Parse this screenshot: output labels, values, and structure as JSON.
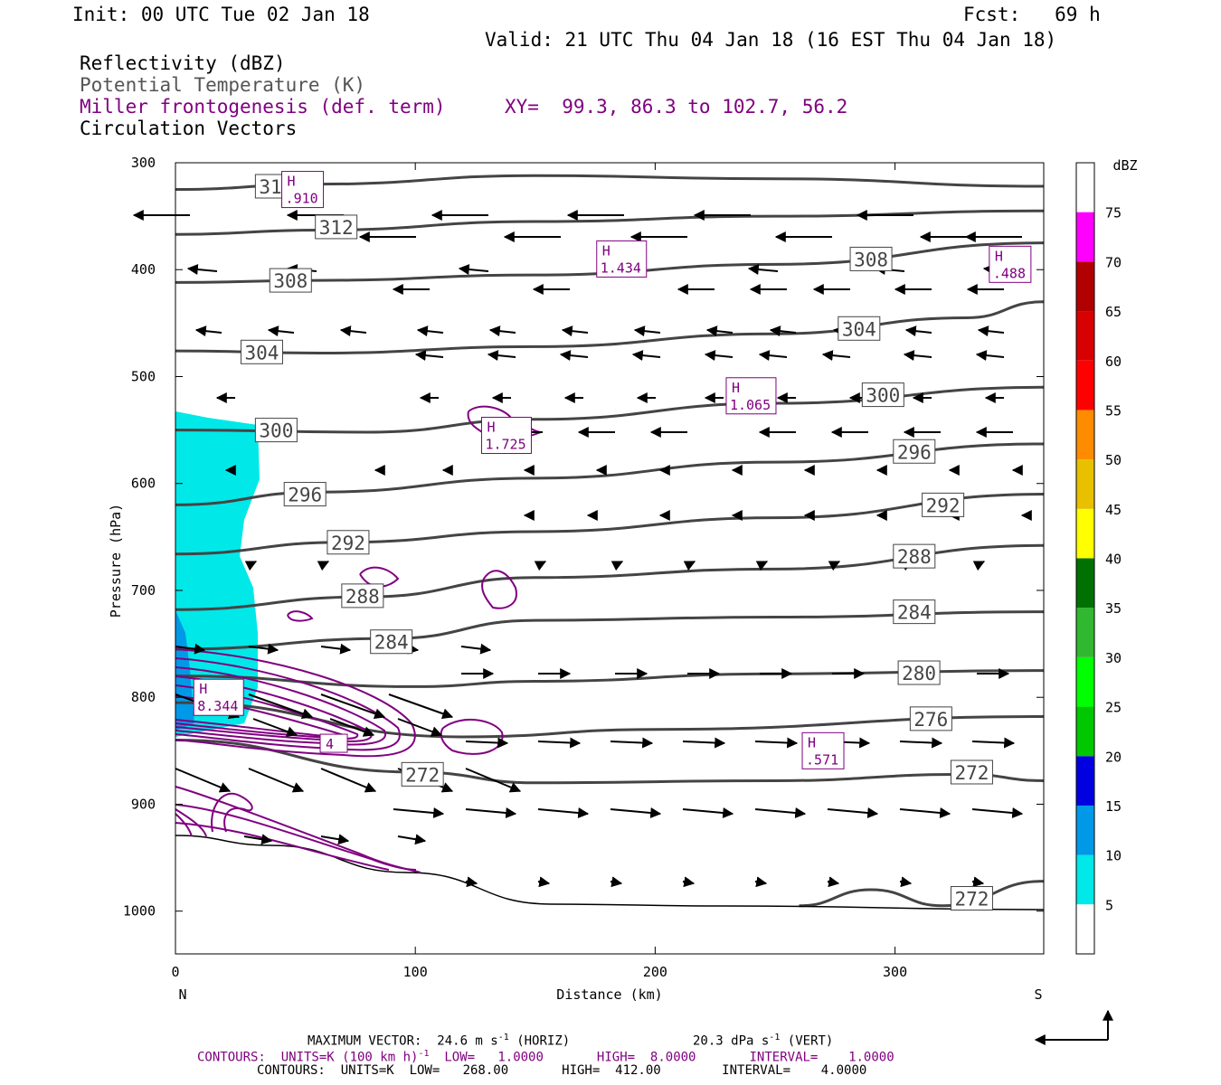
{
  "header": {
    "init": "Init: 00 UTC Tue 02 Jan 18",
    "fcst": "Fcst:   69 h",
    "valid": "Valid: 21 UTC Thu 04 Jan 18 (16 EST Thu 04 Jan 18)",
    "fields": [
      {
        "label": "Reflectivity (dBZ)",
        "color": "#000000"
      },
      {
        "label": "Potential Temperature (K)",
        "color": "#555555"
      },
      {
        "label": "Miller frontogenesis (def. term)",
        "color": "#800080"
      },
      {
        "label": "Circulation Vectors",
        "color": "#000000"
      }
    ],
    "xy": "XY=  99.3, 86.3 to 102.7, 56.2"
  },
  "footer": {
    "max_vector": "MAXIMUM VECTOR:  24.6 m s",
    "max_vector_unit": "-1",
    "horiz": "(HORIZ)",
    "vert_value": "20.3 dPa s",
    "vert_unit": "-1",
    "vert": "(VERT)",
    "contours1_a": "CONTOURS:  UNITS=K (100 km h)",
    "contours1_exp": "-1",
    "contours1_b": "  LOW=   1.0000       HIGH=  8.0000       INTERVAL=    1.0000",
    "contours2": "CONTOURS:  UNITS=K  LOW=   268.00       HIGH=  412.00        INTERVAL=    4.0000"
  },
  "chart_data": {
    "type": "cross-section",
    "xlabel": "Distance (km)",
    "ylabel": "Pressure (hPa)",
    "xlim": [
      0,
      362
    ],
    "ylim": [
      300,
      1040
    ],
    "x_ticks": [
      0,
      100,
      200,
      300
    ],
    "y_ticks": [
      300,
      400,
      500,
      600,
      700,
      800,
      900,
      1000
    ],
    "left_end_label": "N",
    "right_end_label": "S",
    "reflectivity_colorbar": {
      "unit": "dBZ",
      "levels": [
        5,
        10,
        15,
        20,
        25,
        30,
        35,
        40,
        45,
        50,
        55,
        60,
        65,
        70,
        75
      ],
      "colors": [
        "#00e8e8",
        "#0099e8",
        "#0000e0",
        "#00c800",
        "#00ff00",
        "#30b830",
        "#007000",
        "#ffff00",
        "#e8c000",
        "#ff8c00",
        "#ff0000",
        "#d80000",
        "#b00000",
        "#ff00ff",
        "#9650c8",
        "#ffffff"
      ]
    },
    "theta_contours": [
      {
        "label": "316",
        "points": [
          [
            0,
            325
          ],
          [
            60,
            320
          ],
          [
            150,
            312
          ],
          [
            250,
            315
          ],
          [
            362,
            322
          ]
        ],
        "label_at": [
          42,
          322
        ]
      },
      {
        "label": "312",
        "points": [
          [
            0,
            367
          ],
          [
            60,
            363
          ],
          [
            150,
            355
          ],
          [
            250,
            350
          ],
          [
            362,
            345
          ]
        ],
        "label_at": [
          67,
          360
        ]
      },
      {
        "label": "308",
        "points": [
          [
            0,
            412
          ],
          [
            60,
            410
          ],
          [
            150,
            405
          ],
          [
            250,
            395
          ],
          [
            362,
            375
          ]
        ],
        "label_at": [
          48,
          410
        ],
        "label2": "308",
        "label2_at": [
          290,
          390
        ]
      },
      {
        "label": "304",
        "points": [
          [
            0,
            476
          ],
          [
            60,
            478
          ],
          [
            150,
            472
          ],
          [
            250,
            460
          ],
          [
            330,
            445
          ],
          [
            362,
            430
          ]
        ],
        "label_at": [
          36,
          477
        ],
        "label2": "304",
        "label2_at": [
          285,
          455
        ]
      },
      {
        "label": "300",
        "points": [
          [
            0,
            550
          ],
          [
            80,
            552
          ],
          [
            150,
            540
          ],
          [
            250,
            525
          ],
          [
            362,
            510
          ]
        ],
        "label_at": [
          42,
          550
        ],
        "label2": "300",
        "label2_at": [
          295,
          517
        ]
      },
      {
        "label": "296",
        "points": [
          [
            0,
            620
          ],
          [
            60,
            608
          ],
          [
            150,
            595
          ],
          [
            250,
            580
          ],
          [
            362,
            563
          ]
        ],
        "label_at": [
          54,
          610
        ],
        "label2": "296",
        "label2_at": [
          308,
          570
        ]
      },
      {
        "label": "292",
        "points": [
          [
            0,
            666
          ],
          [
            70,
            655
          ],
          [
            150,
            645
          ],
          [
            250,
            632
          ],
          [
            362,
            610
          ]
        ],
        "label_at": [
          72,
          655
        ],
        "label2": "292",
        "label2_at": [
          320,
          620
        ]
      },
      {
        "label": "288",
        "points": [
          [
            0,
            718
          ],
          [
            80,
            706
          ],
          [
            150,
            688
          ],
          [
            250,
            680
          ],
          [
            362,
            658
          ]
        ],
        "label_at": [
          78,
          705
        ],
        "label2": "288",
        "label2_at": [
          308,
          668
        ]
      },
      {
        "label": "284",
        "points": [
          [
            0,
            755
          ],
          [
            90,
            745
          ],
          [
            150,
            728
          ],
          [
            250,
            725
          ],
          [
            362,
            720
          ]
        ],
        "label_at": [
          90,
          748
        ],
        "label2": "284",
        "label2_at": [
          308,
          720
        ]
      },
      {
        "label": "280",
        "points": [
          [
            0,
            780
          ],
          [
            100,
            790
          ],
          [
            150,
            785
          ],
          [
            250,
            778
          ],
          [
            362,
            775
          ]
        ],
        "label_at": [
          310,
          777
        ]
      },
      {
        "label": "276",
        "points": [
          [
            0,
            805
          ],
          [
            120,
            837
          ],
          [
            200,
            830
          ],
          [
            362,
            818
          ]
        ],
        "label_at": [
          315,
          820
        ]
      },
      {
        "label": "272",
        "points": [
          [
            0,
            840
          ],
          [
            100,
            870
          ],
          [
            150,
            880
          ],
          [
            250,
            878
          ],
          [
            330,
            872
          ],
          [
            362,
            878
          ]
        ],
        "label_at": [
          103,
          872
        ],
        "label2": "272",
        "label2_at": [
          332,
          870
        ]
      },
      {
        "label": "272",
        "points": [
          [
            260,
            995
          ],
          [
            290,
            980
          ],
          [
            320,
            995
          ],
          [
            362,
            972
          ]
        ],
        "label_at": [
          332,
          988
        ]
      }
    ],
    "frontogenesis_labels": [
      {
        "text": "H",
        "value": ".910",
        "x": 53,
        "y": 325
      },
      {
        "text": "H",
        "value": "1.434",
        "x": 186,
        "y": 390
      },
      {
        "text": "H",
        "value": ".488",
        "x": 348,
        "y": 395
      },
      {
        "text": "H",
        "value": "1.065",
        "x": 240,
        "y": 518
      },
      {
        "text": "H",
        "value": "1.725",
        "x": 138,
        "y": 555
      },
      {
        "text": "H",
        "value": "8.344",
        "x": 18,
        "y": 800
      },
      {
        "text": "H",
        "value": ".571",
        "x": 270,
        "y": 850
      },
      {
        "text": "4",
        "value": "",
        "x": 66,
        "y": 843
      }
    ]
  }
}
